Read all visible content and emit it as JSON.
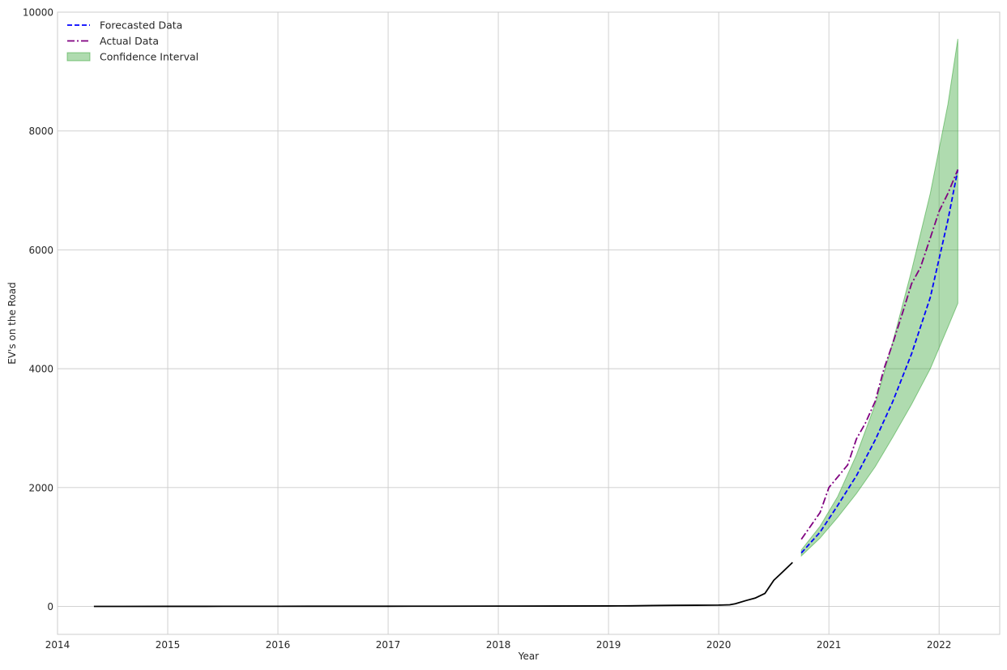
{
  "chart_data": {
    "type": "line",
    "title": "",
    "xlabel": "Year",
    "ylabel": "EV's on the Road",
    "xlim": [
      2014.0,
      2022.55
    ],
    "ylim": [
      -470,
      10000
    ],
    "xticks": [
      2014,
      2015,
      2016,
      2017,
      2018,
      2019,
      2020,
      2021,
      2022
    ],
    "yticks": [
      0,
      2000,
      4000,
      6000,
      8000,
      10000
    ],
    "grid": true,
    "legend_position": "top-left",
    "legend": [
      {
        "label": "Forecasted Data",
        "style": "dashed",
        "color": "#0000ff"
      },
      {
        "label": "Actual Data",
        "style": "dash-dot",
        "color": "#800080"
      },
      {
        "label": "Confidence Interval",
        "style": "area",
        "color": "#2ca02c"
      }
    ],
    "series": [
      {
        "style": "solid",
        "color": "#000000",
        "x": [
          2014.33,
          2014.6,
          2015.0,
          2015.2,
          2015.5,
          2016.0,
          2016.5,
          2017.0,
          2017.5,
          2018.0,
          2018.5,
          2019.0,
          2019.2,
          2019.4,
          2019.6,
          2019.8,
          2020.0,
          2020.1,
          2020.15,
          2020.25,
          2020.33,
          2020.42,
          2020.5,
          2020.58,
          2020.67
        ],
        "y": [
          0,
          0,
          1,
          1,
          2,
          2,
          3,
          3,
          4,
          5,
          6,
          8,
          10,
          15,
          18,
          20,
          22,
          28,
          45,
          100,
          140,
          220,
          440,
          580,
          740
        ]
      },
      {
        "name": "Forecasted Data",
        "style": "dashed",
        "color": "#0000ff",
        "x": [
          2020.75,
          2020.92,
          2021.08,
          2021.25,
          2021.42,
          2021.58,
          2021.75,
          2021.92,
          2022.08,
          2022.17
        ],
        "y": [
          900,
          1250,
          1700,
          2200,
          2800,
          3450,
          4250,
          5200,
          6500,
          7350
        ]
      },
      {
        "name": "Actual Data",
        "style": "dash-dot",
        "color": "#800080",
        "x": [
          2020.75,
          2020.92,
          2021.0,
          2021.17,
          2021.25,
          2021.33,
          2021.42,
          2021.5,
          2021.58,
          2021.67,
          2021.75,
          2021.83,
          2021.92,
          2022.0,
          2022.08,
          2022.17
        ],
        "y": [
          1130,
          1580,
          2000,
          2380,
          2820,
          3080,
          3450,
          4000,
          4430,
          4950,
          5430,
          5700,
          6200,
          6650,
          6950,
          7350
        ]
      }
    ],
    "confidence_interval": {
      "name": "Confidence Interval",
      "color": "#2ca02c",
      "x": [
        2020.75,
        2020.92,
        2021.08,
        2021.25,
        2021.42,
        2021.58,
        2021.75,
        2021.92,
        2022.08,
        2022.17
      ],
      "lower": [
        850,
        1150,
        1500,
        1900,
        2350,
        2850,
        3400,
        4000,
        4700,
        5100
      ],
      "upper": [
        950,
        1350,
        1850,
        2550,
        3400,
        4450,
        5650,
        6950,
        8450,
        9550
      ]
    }
  }
}
